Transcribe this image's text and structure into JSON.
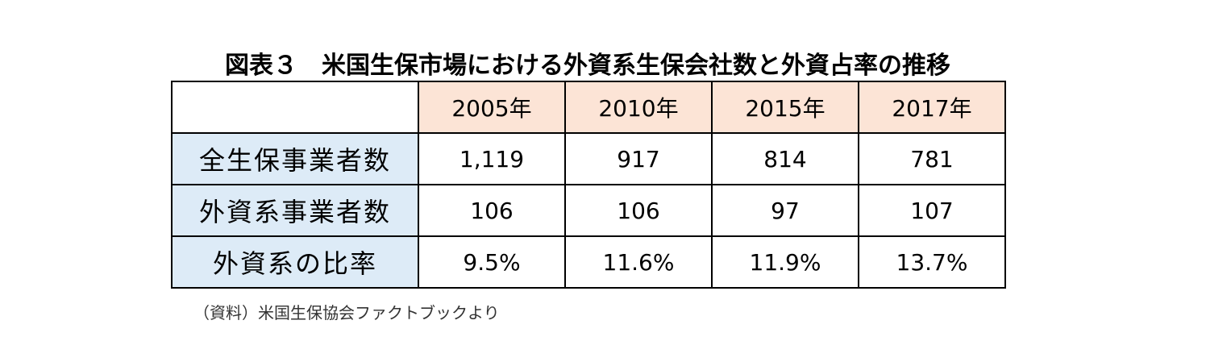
{
  "title": "図表３　米国生保市場における外資系生保会社数と外資占率の推移",
  "table": {
    "header": [
      "2005年",
      "2010年",
      "2015年",
      "2017年"
    ],
    "rows": [
      [
        "全生保事業者数",
        "1,119",
        "917",
        "814",
        "781"
      ],
      [
        "外資系事業者数",
        "106",
        "106",
        "97",
        "107"
      ],
      [
        "外資系の比率",
        "9.5%",
        "11.6%",
        "11.9%",
        "13.7%"
      ]
    ]
  },
  "source": "（資料）米国生保協会ファクトブックより"
}
